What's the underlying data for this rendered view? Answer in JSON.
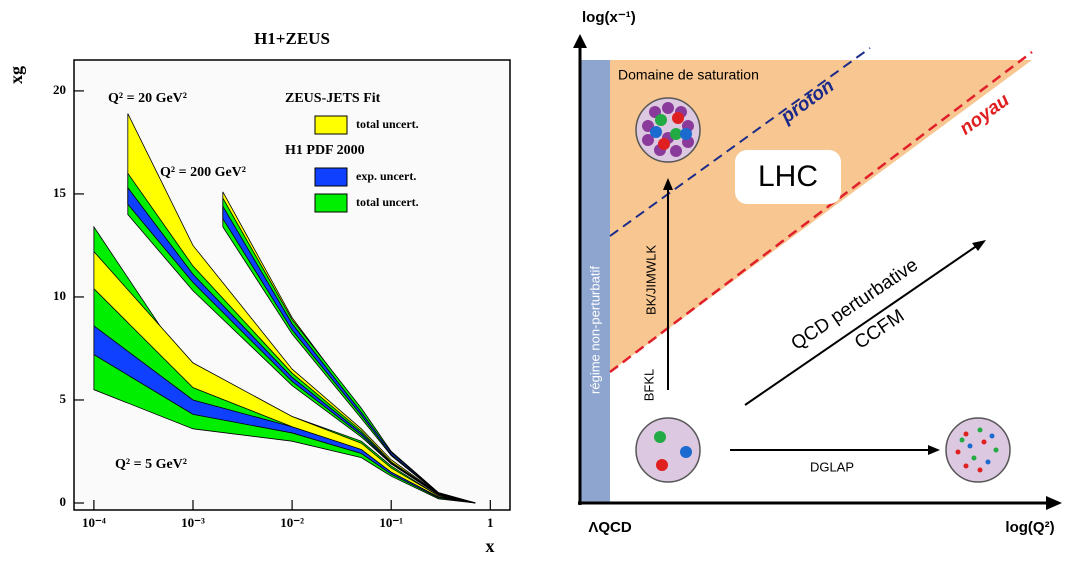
{
  "chart_data": {
    "type": "band",
    "title": "H1+ZEUS",
    "xlabel": "x",
    "ylabel": "xg",
    "xlog": true,
    "xlim": [
      6.3e-05,
      1.58
    ],
    "ylim": [
      -0.34,
      21.5
    ],
    "xticks": [
      {
        "value": 0.0001,
        "label": "10⁻⁴"
      },
      {
        "value": 0.001,
        "label": "10⁻³"
      },
      {
        "value": 0.01,
        "label": "10⁻²"
      },
      {
        "value": 0.1,
        "label": "10⁻¹"
      },
      1
    ],
    "yticks": [
      0,
      5,
      10,
      15,
      20
    ],
    "annotations": [
      "Q² = 20 GeV²",
      "Q² = 200 GeV²",
      "Q² = 5 GeV²"
    ],
    "legend": [
      {
        "header": "ZEUS-JETS Fit",
        "items": [
          {
            "label": "total uncert.",
            "color": "#ffff00"
          }
        ]
      },
      {
        "header": "H1 PDF 2000",
        "items": [
          {
            "label": "exp. uncert.",
            "color": "#1040ff"
          },
          {
            "label": "total uncert.",
            "color": "#00ee00"
          }
        ]
      }
    ],
    "series": [
      {
        "color": "#00ee00",
        "x": [
          0.0001,
          0.001,
          0.01,
          0.05,
          0.1,
          0.3,
          0.7
        ],
        "high": [
          13.4,
          6.2,
          4.2,
          3.0,
          1.8,
          0.35,
          0
        ],
        "low": [
          5.5,
          3.6,
          3.0,
          2.2,
          1.3,
          0.2,
          0
        ]
      },
      {
        "color": "#1040ff",
        "x": [
          0.0001,
          0.001,
          0.01,
          0.05,
          0.1,
          0.3,
          0.7
        ],
        "high": [
          8.6,
          5.0,
          3.7,
          2.6,
          1.5,
          0.3,
          0
        ],
        "low": [
          7.2,
          4.3,
          3.4,
          2.4,
          1.4,
          0.25,
          0
        ]
      },
      {
        "color": "#ffff00",
        "x": [
          0.0001,
          0.001,
          0.01,
          0.05,
          0.1,
          0.3,
          0.7
        ],
        "high": [
          12.2,
          6.8,
          4.2,
          2.9,
          1.7,
          0.35,
          0
        ],
        "low": [
          10.4,
          5.6,
          3.7,
          2.6,
          1.5,
          0.3,
          0
        ]
      },
      {
        "color": "#ffff00",
        "x": [
          0.00022,
          0.001,
          0.01,
          0.05,
          0.1,
          0.3,
          0.7
        ],
        "high": [
          18.9,
          12.5,
          6.5,
          3.6,
          2.1,
          0.45,
          0.01
        ],
        "low": [
          14.5,
          10.5,
          5.8,
          3.3,
          1.9,
          0.4,
          0
        ]
      },
      {
        "color": "#00ee00",
        "x": [
          0.00022,
          0.001,
          0.01,
          0.05,
          0.1,
          0.3,
          0.7
        ],
        "high": [
          16.0,
          11.5,
          6.3,
          3.5,
          2.0,
          0.45,
          0.01
        ],
        "low": [
          14.0,
          10.3,
          5.7,
          3.2,
          1.9,
          0.4,
          0
        ]
      },
      {
        "color": "#1040ff",
        "x": [
          0.00022,
          0.001,
          0.01,
          0.05,
          0.1,
          0.3,
          0.7
        ],
        "high": [
          15.3,
          11.1,
          6.1,
          3.4,
          1.95,
          0.42,
          0.01
        ],
        "low": [
          14.5,
          10.7,
          5.9,
          3.3,
          1.9,
          0.41,
          0
        ]
      },
      {
        "color": "#ffff00",
        "x": [
          0.002,
          0.01,
          0.05,
          0.1,
          0.3,
          0.7
        ],
        "high": [
          15.1,
          9.0,
          4.5,
          2.5,
          0.5,
          0.01
        ],
        "low": [
          13.6,
          8.3,
          4.2,
          2.3,
          0.45,
          0
        ]
      },
      {
        "color": "#00ee00",
        "x": [
          0.002,
          0.01,
          0.05,
          0.1,
          0.3,
          0.7
        ],
        "high": [
          14.8,
          8.9,
          4.6,
          2.5,
          0.5,
          0.01
        ],
        "low": [
          13.4,
          8.2,
          4.1,
          2.3,
          0.45,
          0
        ]
      },
      {
        "color": "#1040ff",
        "x": [
          0.002,
          0.01,
          0.05,
          0.1,
          0.3,
          0.7
        ],
        "high": [
          14.4,
          8.7,
          4.4,
          2.45,
          0.48,
          0.01
        ],
        "low": [
          13.8,
          8.4,
          4.25,
          2.35,
          0.46,
          0
        ]
      }
    ]
  },
  "diagram": {
    "y_axis_label": "log(x⁻¹)",
    "x_axis_label": "log(Q²)",
    "origin_label": "ΛQCD",
    "saturation": "Domaine de saturation",
    "proton": "proton",
    "noyau": "noyau",
    "lhc": "LHC",
    "nonpert": "régime non-perturbatif",
    "bk": "BK/JIMWLK",
    "bfkl": "BFKL",
    "qcd": "QCD perturbative",
    "ccfm": "CCFM",
    "dglap": "DGLAP"
  }
}
